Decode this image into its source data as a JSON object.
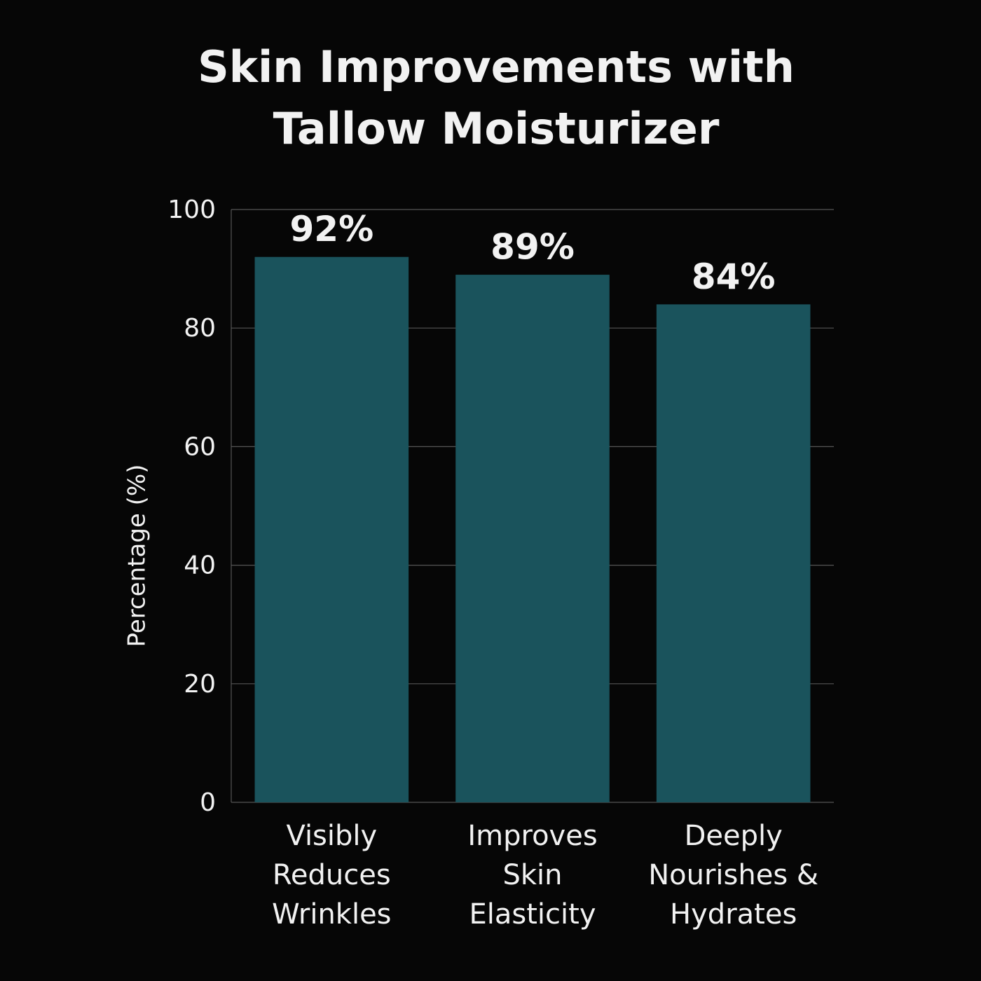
{
  "chart_data": {
    "type": "bar",
    "title": "Skin Improvements with\nTallow Moisturizer",
    "y_label": "Percentage (%)",
    "categories": [
      "Visibly\nReduces\nWrinkles",
      "Improves\nSkin\nElasticity",
      "Deeply\nNourishes &\nHydrates"
    ],
    "values": [
      92,
      89,
      84
    ],
    "value_labels": [
      "92%",
      "89%",
      "84%"
    ],
    "color": "#1a535c",
    "ylim": [
      0,
      100
    ],
    "yticks": [
      0,
      20,
      40,
      60,
      80,
      100
    ],
    "grid": true
  }
}
